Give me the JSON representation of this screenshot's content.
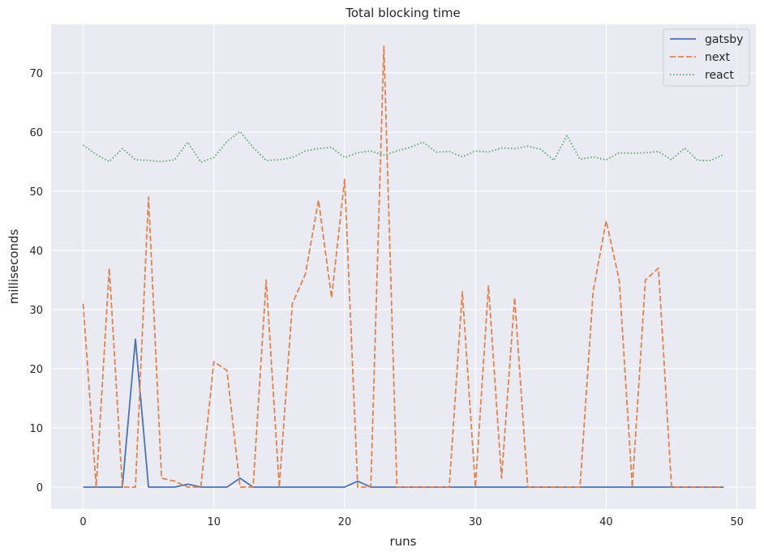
{
  "chart_data": {
    "type": "line",
    "title": "Total blocking time",
    "xlabel": "runs",
    "ylabel": "milliseconds",
    "xlim": [
      -2.45,
      51.45
    ],
    "ylim": [
      -3.7,
      78.2
    ],
    "xticks": [
      0,
      10,
      20,
      30,
      40,
      50
    ],
    "yticks": [
      0,
      10,
      20,
      30,
      40,
      50,
      60,
      70
    ],
    "grid": true,
    "legend_position": "top-right",
    "x": [
      0,
      1,
      2,
      3,
      4,
      5,
      6,
      7,
      8,
      9,
      10,
      11,
      12,
      13,
      14,
      15,
      16,
      17,
      18,
      19,
      20,
      21,
      22,
      23,
      24,
      25,
      26,
      27,
      28,
      29,
      30,
      31,
      32,
      33,
      34,
      35,
      36,
      37,
      38,
      39,
      40,
      41,
      42,
      43,
      44,
      45,
      46,
      47,
      48,
      49
    ],
    "series": [
      {
        "name": "gatsby",
        "color": "#4c72b0",
        "dash": "solid",
        "values": [
          0,
          0,
          0,
          0,
          25,
          0,
          0,
          0,
          0.5,
          0,
          0,
          0,
          1.5,
          0,
          0,
          0,
          0,
          0,
          0,
          0,
          0,
          1,
          0,
          0,
          0,
          0,
          0,
          0,
          0,
          0,
          0,
          0,
          0,
          0,
          0,
          0,
          0,
          0,
          0,
          0,
          0,
          0,
          0,
          0,
          0,
          0,
          0,
          0,
          0,
          0
        ]
      },
      {
        "name": "next",
        "color": "#dd8452",
        "dash": "dashed",
        "values": [
          31,
          0,
          37,
          0,
          0,
          49,
          1.5,
          1,
          0,
          0,
          21.2,
          19.7,
          0,
          0,
          35,
          0,
          31,
          36,
          48.5,
          32,
          52,
          0,
          0,
          74.5,
          0,
          0,
          0,
          0,
          0,
          33,
          0,
          34,
          1.5,
          32,
          0,
          0,
          0,
          0,
          0,
          33,
          45,
          35,
          0,
          35,
          37,
          0,
          0,
          0,
          0,
          0
        ]
      },
      {
        "name": "react",
        "color": "#55a868",
        "dash": "dotted",
        "values": [
          57.8,
          56.2,
          55,
          57.2,
          55.3,
          55.2,
          55,
          55.3,
          58.3,
          54.9,
          55.7,
          58.4,
          60.1,
          57.4,
          55.2,
          55.3,
          55.7,
          56.8,
          57.2,
          57.4,
          55.7,
          56.5,
          56.8,
          56.1,
          56.8,
          57.4,
          58.3,
          56.6,
          56.7,
          55.8,
          56.8,
          56.6,
          57.3,
          57.2,
          57.6,
          57.1,
          55.2,
          59.4,
          55.4,
          55.8,
          55.3,
          56.5,
          56.4,
          56.5,
          56.7,
          55.3,
          57.3,
          55.2,
          55.2,
          56.2
        ]
      }
    ]
  }
}
